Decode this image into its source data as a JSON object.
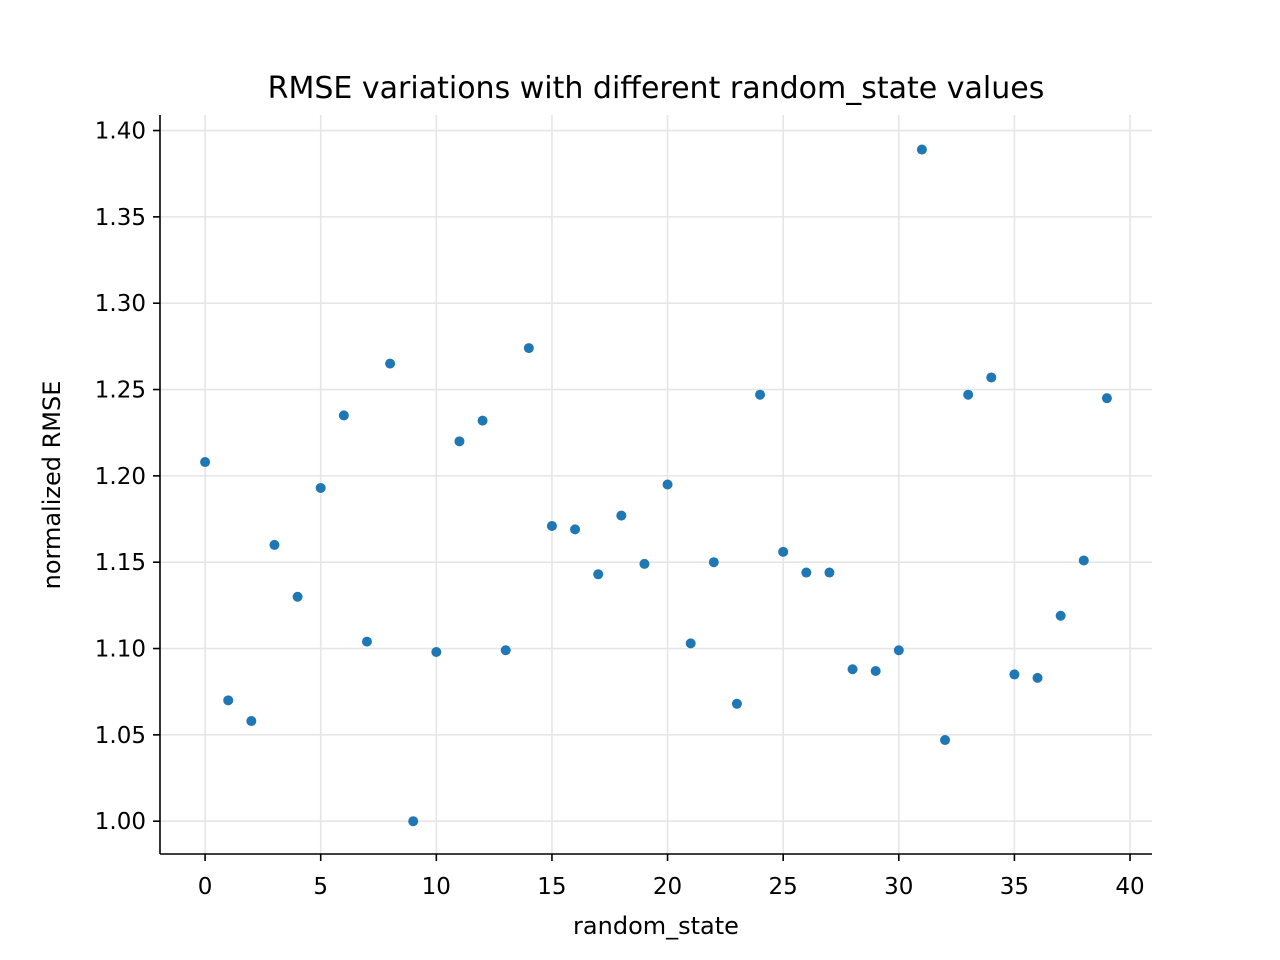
{
  "chart_data": {
    "type": "scatter",
    "title": "RMSE variations with different random_state values",
    "xlabel": "random_state",
    "ylabel": "normalized RMSE",
    "xlim": [
      -1.95,
      40.95
    ],
    "ylim": [
      0.981,
      1.409
    ],
    "xticks": [
      0,
      5,
      10,
      15,
      20,
      25,
      30,
      35,
      40
    ],
    "yticks": [
      1.0,
      1.05,
      1.1,
      1.15,
      1.2,
      1.25,
      1.3,
      1.35,
      1.4
    ],
    "grid": true,
    "marker_color": "#1f77b4",
    "x": [
      0,
      1,
      2,
      3,
      4,
      5,
      6,
      7,
      8,
      9,
      10,
      11,
      12,
      13,
      14,
      15,
      16,
      17,
      18,
      19,
      20,
      21,
      22,
      23,
      24,
      25,
      26,
      27,
      28,
      29,
      30,
      31,
      32,
      33,
      34,
      35,
      36,
      37,
      38,
      39
    ],
    "y": [
      1.208,
      1.07,
      1.058,
      1.16,
      1.13,
      1.193,
      1.235,
      1.104,
      1.265,
      1.0,
      1.098,
      1.22,
      1.232,
      1.099,
      1.274,
      1.171,
      1.169,
      1.143,
      1.177,
      1.149,
      1.195,
      1.103,
      1.15,
      1.068,
      1.247,
      1.156,
      1.144,
      1.144,
      1.088,
      1.087,
      1.099,
      1.389,
      1.047,
      1.247,
      1.257,
      1.085,
      1.083,
      1.119,
      1.151,
      1.245
    ]
  }
}
